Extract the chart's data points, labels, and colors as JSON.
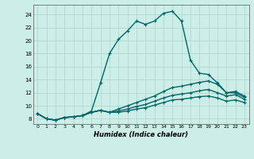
{
  "title": "",
  "xlabel": "Humidex (Indice chaleur)",
  "xlim": [
    -0.5,
    23.5
  ],
  "ylim": [
    7.2,
    25.5
  ],
  "yticks": [
    8,
    10,
    12,
    14,
    16,
    18,
    20,
    22,
    24
  ],
  "xticks": [
    0,
    1,
    2,
    3,
    4,
    5,
    6,
    7,
    8,
    9,
    10,
    11,
    12,
    13,
    14,
    15,
    16,
    17,
    18,
    19,
    20,
    21,
    22,
    23
  ],
  "bg_color": "#cceee8",
  "grid_color": "#aad4cc",
  "line_color": "#006666",
  "lines": [
    [
      8.8,
      8.0,
      7.8,
      8.2,
      8.3,
      8.5,
      9.2,
      13.5,
      18.0,
      20.2,
      21.5,
      23.0,
      22.5,
      23.0,
      24.2,
      24.5,
      23.0,
      17.0,
      15.0,
      14.8,
      13.5,
      12.0,
      12.2,
      11.5
    ],
    [
      8.8,
      8.0,
      7.8,
      8.2,
      8.3,
      8.5,
      9.0,
      9.3,
      9.0,
      9.5,
      10.0,
      10.5,
      11.0,
      11.5,
      12.2,
      12.8,
      13.0,
      13.3,
      13.6,
      13.8,
      13.3,
      12.0,
      12.0,
      11.3
    ],
    [
      8.8,
      8.0,
      7.8,
      8.2,
      8.3,
      8.5,
      9.0,
      9.3,
      9.0,
      9.2,
      9.5,
      9.9,
      10.2,
      10.7,
      11.2,
      11.6,
      11.8,
      12.0,
      12.3,
      12.5,
      12.0,
      11.5,
      11.7,
      11.0
    ],
    [
      8.8,
      8.0,
      7.8,
      8.2,
      8.3,
      8.5,
      9.0,
      9.3,
      9.0,
      9.0,
      9.2,
      9.5,
      9.7,
      10.1,
      10.5,
      10.9,
      11.0,
      11.2,
      11.4,
      11.5,
      11.2,
      10.7,
      10.9,
      10.5
    ]
  ]
}
